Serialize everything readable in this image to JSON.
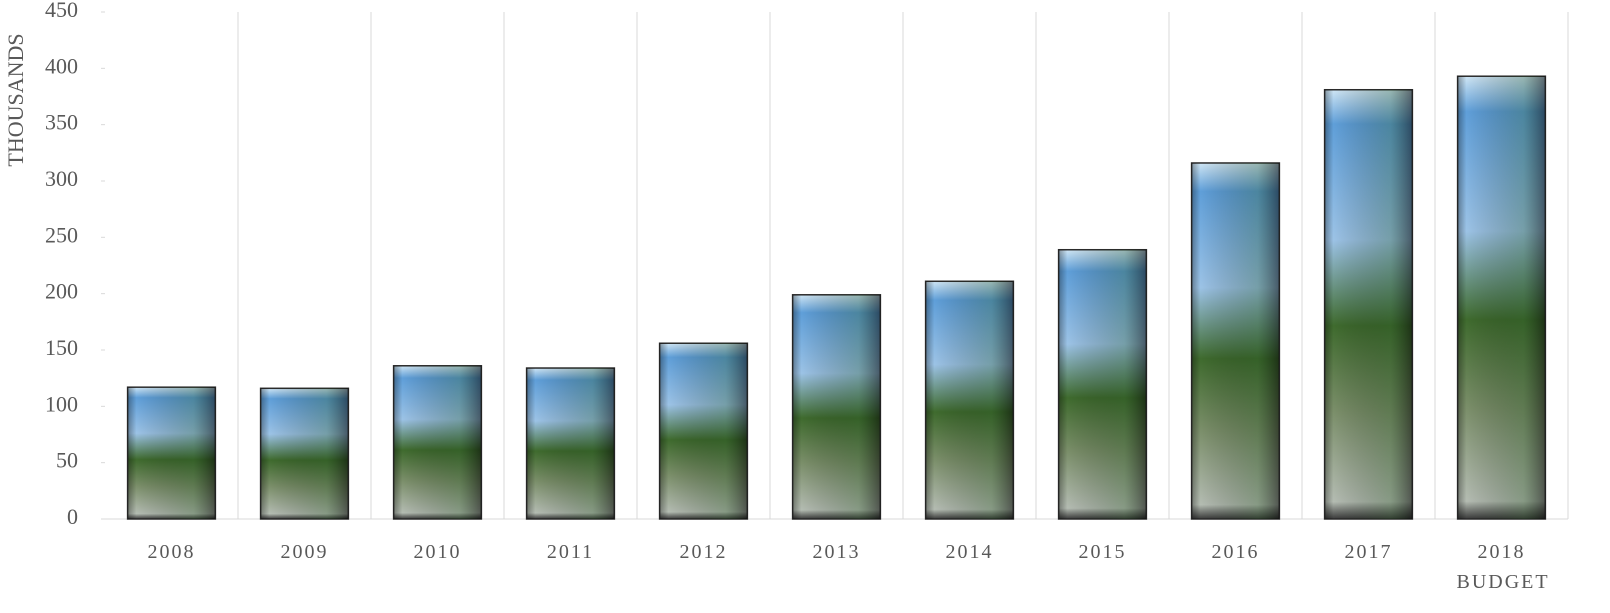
{
  "chart_data": {
    "type": "bar",
    "y_label": "THOUSANDS",
    "categories": [
      "2008",
      "2009",
      "2010",
      "2011",
      "2012",
      "2013",
      "2014",
      "2015",
      "2016",
      "2017",
      "2018 BUDGET"
    ],
    "values": [
      117,
      116,
      136,
      134,
      156,
      199,
      211,
      239,
      316,
      381,
      393
    ],
    "ylim": [
      0,
      450
    ],
    "yticks": [
      0,
      50,
      100,
      150,
      200,
      250,
      300,
      350,
      400,
      450
    ],
    "grid": true
  }
}
